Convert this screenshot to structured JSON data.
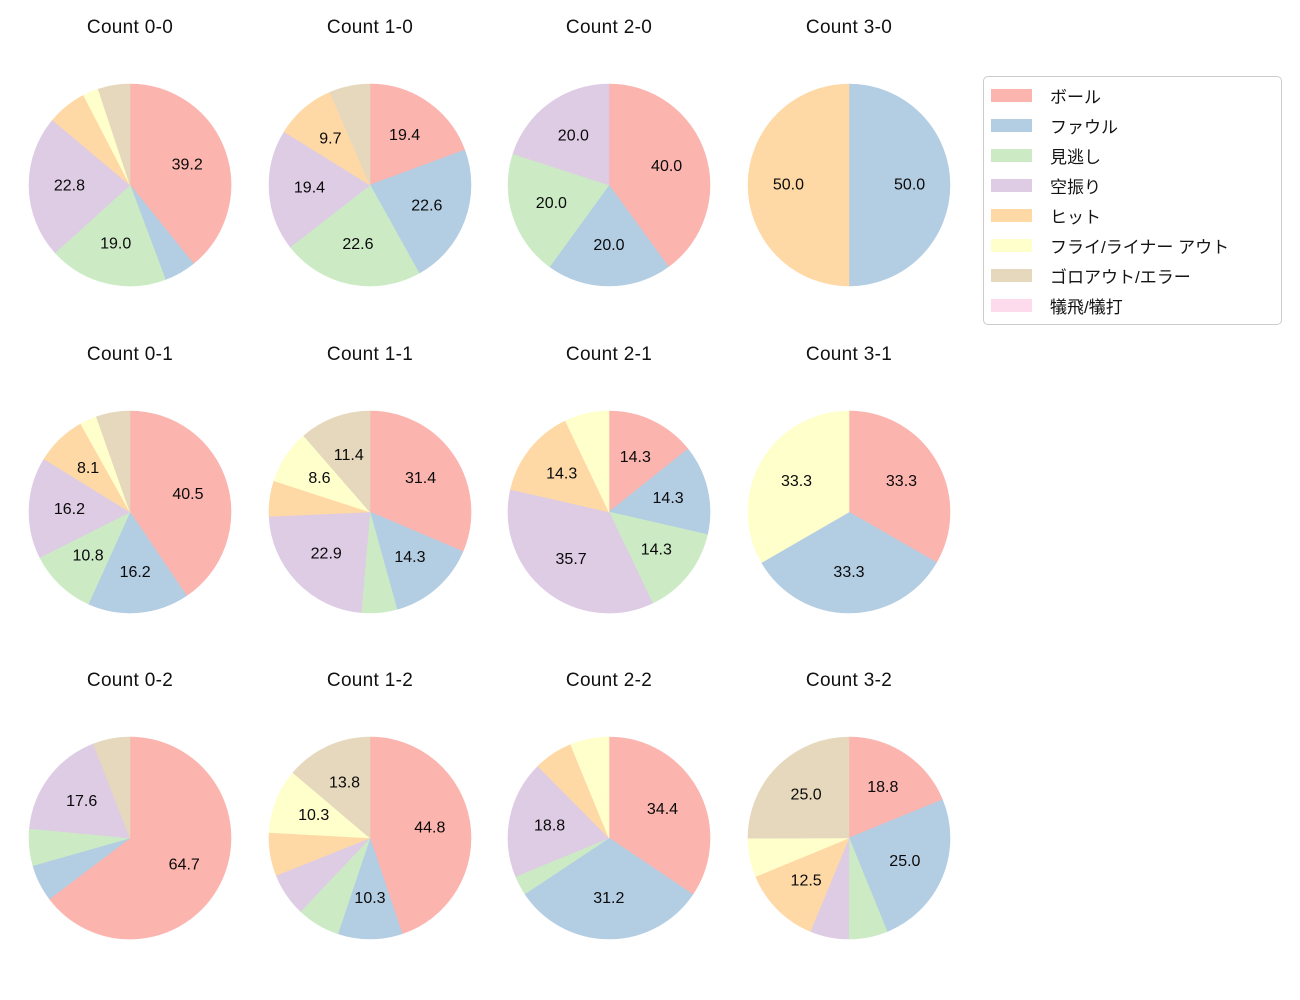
{
  "figure": {
    "background": "#ffffff",
    "title_color": "#111111",
    "pct_label_color": "#0a0a0a"
  },
  "legend": {
    "position": "top-right",
    "entries": [
      {
        "label": "ボール",
        "color": "#fbb4ae"
      },
      {
        "label": "ファウル",
        "color": "#b3cde3"
      },
      {
        "label": "見逃し",
        "color": "#ccebc5"
      },
      {
        "label": "空振り",
        "color": "#decbe4"
      },
      {
        "label": "ヒット",
        "color": "#fed9a6"
      },
      {
        "label": "フライ/ライナー アウト",
        "color": "#ffffcc"
      },
      {
        "label": "ゴロアウト/エラー",
        "color": "#e5d8bd"
      },
      {
        "label": "犠飛/犠打",
        "color": "#fddaec"
      }
    ]
  },
  "chart_data": [
    {
      "type": "pie",
      "title": "Count 0-0",
      "start_angle": "top",
      "direction": "clockwise",
      "slices": [
        {
          "category": "ボール",
          "value": 39.2,
          "label": "39.2"
        },
        {
          "category": "ファウル",
          "value": 5.1,
          "label": null
        },
        {
          "category": "見逃し",
          "value": 19.0,
          "label": "19.0"
        },
        {
          "category": "空振り",
          "value": 22.8,
          "label": "22.8"
        },
        {
          "category": "ヒット",
          "value": 6.3,
          "label": null
        },
        {
          "category": "フライ/ライナー アウト",
          "value": 2.5,
          "label": null
        },
        {
          "category": "ゴロアウト/エラー",
          "value": 5.1,
          "label": null
        }
      ]
    },
    {
      "type": "pie",
      "title": "Count 1-0",
      "start_angle": "top",
      "direction": "clockwise",
      "slices": [
        {
          "category": "ボール",
          "value": 19.4,
          "label": "19.4"
        },
        {
          "category": "ファウル",
          "value": 22.6,
          "label": "22.6"
        },
        {
          "category": "見逃し",
          "value": 22.6,
          "label": "22.6"
        },
        {
          "category": "空振り",
          "value": 19.4,
          "label": "19.4"
        },
        {
          "category": "ヒット",
          "value": 9.7,
          "label": "9.7"
        },
        {
          "category": "ゴロアウト/エラー",
          "value": 6.5,
          "label": null
        }
      ]
    },
    {
      "type": "pie",
      "title": "Count 2-0",
      "start_angle": "top",
      "direction": "clockwise",
      "slices": [
        {
          "category": "ボール",
          "value": 40.0,
          "label": "40.0"
        },
        {
          "category": "ファウル",
          "value": 20.0,
          "label": "20.0"
        },
        {
          "category": "見逃し",
          "value": 20.0,
          "label": "20.0"
        },
        {
          "category": "空振り",
          "value": 20.0,
          "label": "20.0"
        }
      ]
    },
    {
      "type": "pie",
      "title": "Count 3-0",
      "start_angle": "top",
      "direction": "clockwise",
      "slices": [
        {
          "category": "ファウル",
          "value": 50.0,
          "label": "50.0"
        },
        {
          "category": "ヒット",
          "value": 50.0,
          "label": "50.0"
        }
      ]
    },
    {
      "type": "pie",
      "title": "Count 0-1",
      "start_angle": "top",
      "direction": "clockwise",
      "slices": [
        {
          "category": "ボール",
          "value": 40.5,
          "label": "40.5"
        },
        {
          "category": "ファウル",
          "value": 16.2,
          "label": "16.2"
        },
        {
          "category": "見逃し",
          "value": 10.8,
          "label": "10.8"
        },
        {
          "category": "空振り",
          "value": 16.2,
          "label": "16.2"
        },
        {
          "category": "ヒット",
          "value": 8.1,
          "label": "8.1"
        },
        {
          "category": "フライ/ライナー アウト",
          "value": 2.7,
          "label": null
        },
        {
          "category": "ゴロアウト/エラー",
          "value": 5.4,
          "label": null
        }
      ]
    },
    {
      "type": "pie",
      "title": "Count 1-1",
      "start_angle": "top",
      "direction": "clockwise",
      "slices": [
        {
          "category": "ボール",
          "value": 31.4,
          "label": "31.4"
        },
        {
          "category": "ファウル",
          "value": 14.3,
          "label": "14.3"
        },
        {
          "category": "見逃し",
          "value": 5.7,
          "label": null
        },
        {
          "category": "空振り",
          "value": 22.9,
          "label": "22.9"
        },
        {
          "category": "ヒット",
          "value": 5.7,
          "label": null
        },
        {
          "category": "フライ/ライナー アウト",
          "value": 8.6,
          "label": "8.6"
        },
        {
          "category": "ゴロアウト/エラー",
          "value": 11.4,
          "label": "11.4"
        }
      ]
    },
    {
      "type": "pie",
      "title": "Count 2-1",
      "start_angle": "top",
      "direction": "clockwise",
      "slices": [
        {
          "category": "ボール",
          "value": 14.3,
          "label": "14.3"
        },
        {
          "category": "ファウル",
          "value": 14.3,
          "label": "14.3"
        },
        {
          "category": "見逃し",
          "value": 14.3,
          "label": "14.3"
        },
        {
          "category": "空振り",
          "value": 35.7,
          "label": "35.7"
        },
        {
          "category": "ヒット",
          "value": 14.3,
          "label": "14.3"
        },
        {
          "category": "フライ/ライナー アウト",
          "value": 7.1,
          "label": null
        }
      ]
    },
    {
      "type": "pie",
      "title": "Count 3-1",
      "start_angle": "top",
      "direction": "clockwise",
      "slices": [
        {
          "category": "ボール",
          "value": 33.3,
          "label": "33.3"
        },
        {
          "category": "ファウル",
          "value": 33.3,
          "label": "33.3"
        },
        {
          "category": "フライ/ライナー アウト",
          "value": 33.3,
          "label": "33.3"
        }
      ]
    },
    {
      "type": "pie",
      "title": "Count 0-2",
      "start_angle": "top",
      "direction": "clockwise",
      "slices": [
        {
          "category": "ボール",
          "value": 64.7,
          "label": "64.7"
        },
        {
          "category": "ファウル",
          "value": 5.9,
          "label": null
        },
        {
          "category": "見逃し",
          "value": 5.9,
          "label": null
        },
        {
          "category": "空振り",
          "value": 17.6,
          "label": "17.6"
        },
        {
          "category": "ゴロアウト/エラー",
          "value": 5.9,
          "label": null
        }
      ]
    },
    {
      "type": "pie",
      "title": "Count 1-2",
      "start_angle": "top",
      "direction": "clockwise",
      "slices": [
        {
          "category": "ボール",
          "value": 44.8,
          "label": "44.8"
        },
        {
          "category": "ファウル",
          "value": 10.3,
          "label": "10.3"
        },
        {
          "category": "見逃し",
          "value": 6.9,
          "label": null
        },
        {
          "category": "空振り",
          "value": 6.9,
          "label": null
        },
        {
          "category": "ヒット",
          "value": 6.9,
          "label": null
        },
        {
          "category": "フライ/ライナー アウト",
          "value": 10.3,
          "label": "10.3"
        },
        {
          "category": "ゴロアウト/エラー",
          "value": 13.8,
          "label": "13.8"
        }
      ]
    },
    {
      "type": "pie",
      "title": "Count 2-2",
      "start_angle": "top",
      "direction": "clockwise",
      "slices": [
        {
          "category": "ボール",
          "value": 34.4,
          "label": "34.4"
        },
        {
          "category": "ファウル",
          "value": 31.2,
          "label": "31.2"
        },
        {
          "category": "見逃し",
          "value": 3.1,
          "label": null
        },
        {
          "category": "空振り",
          "value": 18.8,
          "label": "18.8"
        },
        {
          "category": "ヒット",
          "value": 6.2,
          "label": null
        },
        {
          "category": "フライ/ライナー アウト",
          "value": 6.2,
          "label": null
        }
      ]
    },
    {
      "type": "pie",
      "title": "Count 3-2",
      "start_angle": "top",
      "direction": "clockwise",
      "slices": [
        {
          "category": "ボール",
          "value": 18.8,
          "label": "18.8"
        },
        {
          "category": "ファウル",
          "value": 25.0,
          "label": "25.0"
        },
        {
          "category": "見逃し",
          "value": 6.2,
          "label": null
        },
        {
          "category": "空振り",
          "value": 6.2,
          "label": null
        },
        {
          "category": "ヒット",
          "value": 12.5,
          "label": "12.5"
        },
        {
          "category": "フライ/ライナー アウト",
          "value": 6.2,
          "label": null
        },
        {
          "category": "ゴロアウト/エラー",
          "value": 25.0,
          "label": "25.0"
        }
      ]
    }
  ]
}
